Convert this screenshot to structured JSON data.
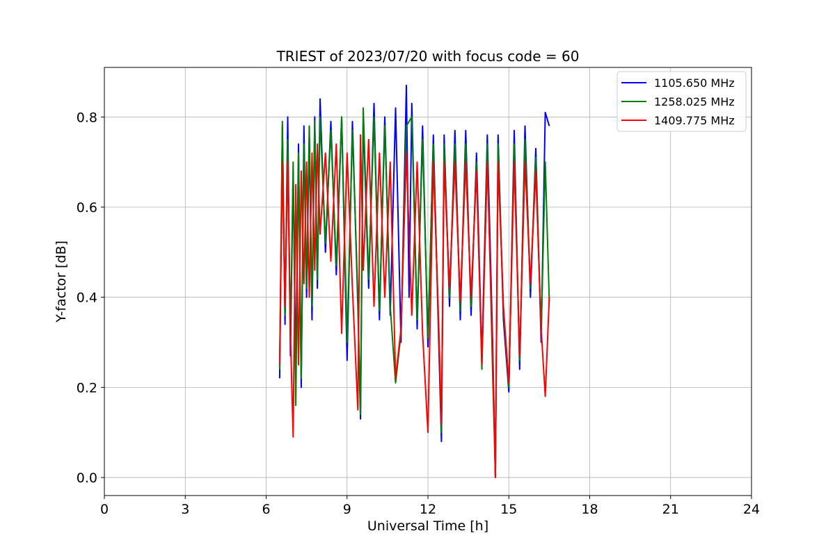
{
  "chart_data": {
    "type": "line",
    "title": "TRIEST of 2023/07/20 with focus code = 60",
    "xlabel": "Universal Time [h]",
    "ylabel": "Y-factor [dB]",
    "xlim": [
      0,
      24
    ],
    "ylim": [
      -0.04,
      0.91
    ],
    "xticks": [
      "0",
      "3",
      "6",
      "9",
      "12",
      "15",
      "18",
      "21",
      "24"
    ],
    "yticks": [
      "0.0",
      "0.2",
      "0.4",
      "0.6",
      "0.8"
    ],
    "grid": true,
    "legend_position": "top-right",
    "series": [
      {
        "name": "1105.650 MHz",
        "color": "#0000ff",
        "x": [
          6.5,
          6.6,
          6.7,
          6.8,
          6.9,
          7.0,
          7.1,
          7.2,
          7.3,
          7.4,
          7.5,
          7.6,
          7.7,
          7.8,
          7.9,
          8.0,
          8.2,
          8.4,
          8.6,
          8.8,
          9.0,
          9.2,
          9.4,
          9.5,
          9.6,
          9.8,
          10.0,
          10.2,
          10.4,
          10.6,
          10.8,
          11.0,
          11.2,
          11.3,
          11.4,
          11.6,
          11.8,
          12.0,
          12.2,
          12.4,
          12.5,
          12.6,
          12.8,
          13.0,
          13.2,
          13.4,
          13.6,
          13.8,
          14.0,
          14.2,
          14.4,
          14.5,
          14.6,
          14.8,
          15.0,
          15.2,
          15.4,
          15.6,
          15.8,
          16.0,
          16.2,
          16.35,
          16.5
        ],
        "y": [
          0.22,
          0.78,
          0.34,
          0.8,
          0.27,
          0.68,
          0.24,
          0.74,
          0.2,
          0.78,
          0.4,
          0.76,
          0.35,
          0.8,
          0.42,
          0.84,
          0.5,
          0.79,
          0.45,
          0.8,
          0.26,
          0.79,
          0.38,
          0.13,
          0.8,
          0.42,
          0.83,
          0.35,
          0.8,
          0.36,
          0.82,
          0.3,
          0.87,
          0.4,
          0.83,
          0.33,
          0.78,
          0.29,
          0.76,
          0.3,
          0.08,
          0.76,
          0.38,
          0.77,
          0.35,
          0.77,
          0.36,
          0.72,
          0.26,
          0.76,
          0.3,
          0.0,
          0.76,
          0.35,
          0.19,
          0.77,
          0.24,
          0.78,
          0.4,
          0.73,
          0.3,
          0.81,
          0.78
        ]
      },
      {
        "name": "1258.025 MHz",
        "color": "#008000",
        "x": [
          6.5,
          6.6,
          6.7,
          6.8,
          6.9,
          7.0,
          7.1,
          7.2,
          7.3,
          7.4,
          7.5,
          7.6,
          7.7,
          7.8,
          7.9,
          8.0,
          8.2,
          8.4,
          8.6,
          8.8,
          9.0,
          9.2,
          9.4,
          9.5,
          9.6,
          9.8,
          10.0,
          10.2,
          10.4,
          10.6,
          10.8,
          11.0,
          11.2,
          11.4,
          11.6,
          11.8,
          12.0,
          12.2,
          12.4,
          12.5,
          12.6,
          12.8,
          13.0,
          13.2,
          13.4,
          13.6,
          13.8,
          14.0,
          14.2,
          14.4,
          14.5,
          14.6,
          14.8,
          15.0,
          15.2,
          15.4,
          15.6,
          15.8,
          16.0,
          16.2,
          16.35,
          16.5
        ],
        "y": [
          0.24,
          0.79,
          0.36,
          0.75,
          0.3,
          0.7,
          0.16,
          0.72,
          0.22,
          0.74,
          0.42,
          0.78,
          0.38,
          0.79,
          0.44,
          0.8,
          0.52,
          0.77,
          0.47,
          0.8,
          0.3,
          0.77,
          0.4,
          0.14,
          0.82,
          0.44,
          0.8,
          0.37,
          0.78,
          0.38,
          0.21,
          0.32,
          0.78,
          0.8,
          0.35,
          0.75,
          0.31,
          0.74,
          0.32,
          0.1,
          0.74,
          0.4,
          0.74,
          0.37,
          0.74,
          0.38,
          0.7,
          0.24,
          0.74,
          0.23,
          0.01,
          0.74,
          0.37,
          0.2,
          0.74,
          0.26,
          0.75,
          0.42,
          0.71,
          0.32,
          0.7,
          0.39
        ]
      },
      {
        "name": "1409.775 MHz",
        "color": "#ff0000",
        "x": [
          6.5,
          6.6,
          6.7,
          6.8,
          6.9,
          7.0,
          7.1,
          7.2,
          7.3,
          7.4,
          7.5,
          7.6,
          7.7,
          7.8,
          7.9,
          8.0,
          8.2,
          8.4,
          8.6,
          8.8,
          9.0,
          9.2,
          9.4,
          9.5,
          9.6,
          9.8,
          10.0,
          10.2,
          10.4,
          10.6,
          10.8,
          11.0,
          11.2,
          11.4,
          11.6,
          11.8,
          12.0,
          12.2,
          12.4,
          12.5,
          12.6,
          12.8,
          13.0,
          13.2,
          13.4,
          13.6,
          13.8,
          14.0,
          14.2,
          14.4,
          14.5,
          14.6,
          14.8,
          15.0,
          15.2,
          15.4,
          15.6,
          15.8,
          16.0,
          16.2,
          16.35,
          16.5
        ],
        "y": [
          0.25,
          0.7,
          0.38,
          0.7,
          0.32,
          0.09,
          0.65,
          0.25,
          0.68,
          0.43,
          0.7,
          0.4,
          0.72,
          0.46,
          0.74,
          0.54,
          0.72,
          0.48,
          0.74,
          0.32,
          0.72,
          0.42,
          0.15,
          0.76,
          0.46,
          0.75,
          0.38,
          0.72,
          0.4,
          0.7,
          0.22,
          0.33,
          0.72,
          0.36,
          0.7,
          0.32,
          0.1,
          0.7,
          0.34,
          0.12,
          0.7,
          0.42,
          0.7,
          0.39,
          0.7,
          0.4,
          0.68,
          0.25,
          0.7,
          0.28,
          0.0,
          0.7,
          0.38,
          0.21,
          0.7,
          0.27,
          0.7,
          0.43,
          0.68,
          0.33,
          0.18,
          0.4
        ]
      }
    ]
  }
}
